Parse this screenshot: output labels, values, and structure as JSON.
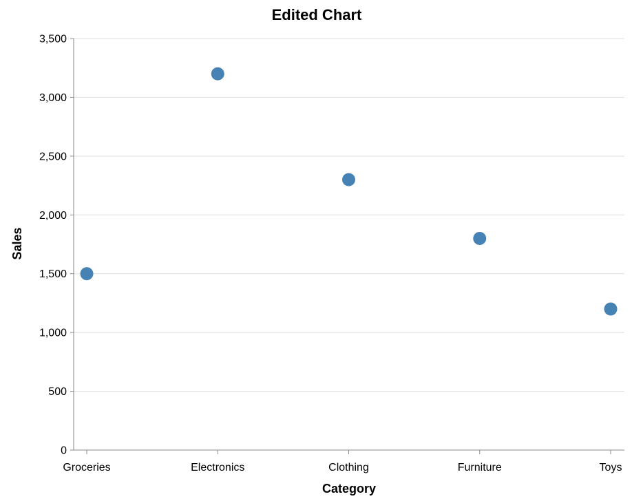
{
  "chart_data": {
    "type": "scatter",
    "title": "Edited Chart",
    "xlabel": "Category",
    "ylabel": "Sales",
    "categories": [
      "Groceries",
      "Electronics",
      "Clothing",
      "Furniture",
      "Toys"
    ],
    "values": [
      1500,
      3200,
      2300,
      1800,
      1200
    ],
    "ylim": [
      0,
      3500
    ],
    "yticks": [
      0,
      500,
      1000,
      1500,
      2000,
      2500,
      3000,
      3500
    ],
    "ytick_labels": [
      "0",
      "500",
      "1,000",
      "1,500",
      "2,000",
      "2,500",
      "3,000",
      "3,500"
    ],
    "grid": true,
    "point_color": "#4682b4"
  }
}
